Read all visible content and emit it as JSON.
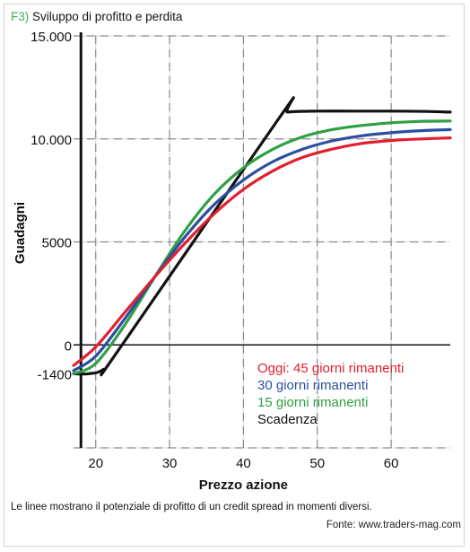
{
  "header": {
    "figure_label": "F3)",
    "title": "Sviluppo di profitto e perdita"
  },
  "caption": "Le linee mostrano il potenziale di profitto di un credit spread in momenti diversi.",
  "source": "Fonte: www.traders-mag.com",
  "chart_data": {
    "type": "line",
    "title": "Sviluppo di profitto e perdita",
    "xlabel": "Prezzo azione",
    "ylabel": "Guadagni",
    "xlim": [
      17,
      68
    ],
    "ylim": [
      -5000,
      15000
    ],
    "x_ticks": [
      20,
      30,
      40,
      50,
      60
    ],
    "x_tick_labels": [
      "20",
      "30",
      "40",
      "50",
      "60"
    ],
    "y_ticks": [
      15000,
      10000,
      5000,
      0,
      -1400
    ],
    "y_tick_labels": [
      "15.000",
      "10.000",
      "5000",
      "0",
      "-1400"
    ],
    "grid": true,
    "legend_position": "bottom-right",
    "series": [
      {
        "name": "Oggi: 45 giorni rimanenti",
        "color": "#e0202f",
        "x": [
          17,
          20,
          24,
          28,
          32,
          36,
          40,
          44,
          48,
          52,
          56,
          60,
          64,
          68
        ],
        "y": [
          -1000,
          -100,
          1600,
          3300,
          4900,
          6350,
          7550,
          8450,
          9100,
          9500,
          9780,
          9920,
          10000,
          10050
        ]
      },
      {
        "name": "30 giorni rimanenti",
        "color": "#2b4fa0",
        "x": [
          17,
          20,
          24,
          28,
          32,
          36,
          40,
          44,
          48,
          52,
          56,
          60,
          64,
          68
        ],
        "y": [
          -1250,
          -550,
          1300,
          3300,
          5200,
          6800,
          8000,
          8900,
          9500,
          9900,
          10150,
          10300,
          10400,
          10450
        ]
      },
      {
        "name": "15 giorni rimanenti",
        "color": "#2fa043",
        "x": [
          17,
          20,
          24,
          28,
          32,
          36,
          40,
          44,
          48,
          52,
          56,
          60,
          64,
          68
        ],
        "y": [
          -1400,
          -900,
          1000,
          3300,
          5500,
          7300,
          8600,
          9500,
          10100,
          10450,
          10650,
          10780,
          10850,
          10870
        ]
      },
      {
        "name": "Scadenza",
        "color": "#111111",
        "x": [
          17,
          19,
          21,
          23,
          45,
          46,
          50,
          55,
          60,
          65,
          68
        ],
        "y": [
          -1400,
          -1400,
          -1200,
          -300,
          11100,
          11300,
          11350,
          11350,
          11350,
          11330,
          11300
        ]
      }
    ]
  }
}
